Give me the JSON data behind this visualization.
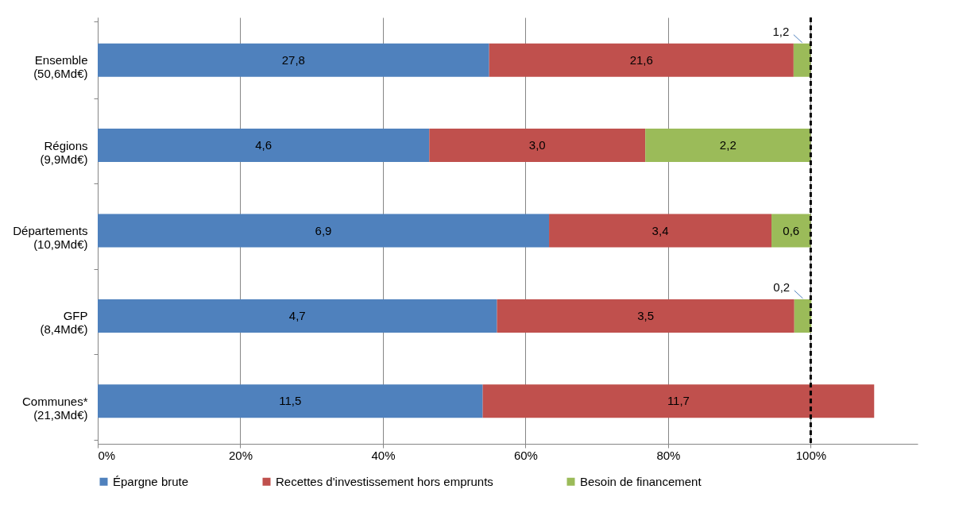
{
  "chart_data": {
    "type": "bar",
    "orientation": "horizontal",
    "stacked": true,
    "categories": [
      "Ensemble\n(50,6Md€)",
      "Régions\n(9,9Md€)",
      "Départements\n(10,9Md€)",
      "GFP\n(8,4Md€)",
      "Communes*\n(21,3Md€)"
    ],
    "series": [
      {
        "name": "Épargne brute",
        "color": "#4f81bd",
        "values": [
          54.9,
          46.5,
          63.3,
          56.0,
          54.0
        ]
      },
      {
        "name": "Recettes d'investissement hors emprunts",
        "color": "#c0504d",
        "values": [
          42.7,
          30.3,
          31.2,
          41.7,
          54.9
        ]
      },
      {
        "name": "Besoin de financement",
        "color": "#9bbb59",
        "values": [
          2.4,
          23.2,
          5.5,
          2.4,
          null
        ]
      }
    ],
    "annotations": [
      "27,8",
      "21,6",
      "1,2",
      "4,6",
      "3,0",
      "2,2",
      "6,9",
      "3,4",
      "0,6",
      "4,7",
      "3,5",
      "0,2",
      "11,5",
      "11,7"
    ],
    "xlim": [
      0,
      115
    ],
    "xticks": [
      {
        "value": 0,
        "label": "0%"
      },
      {
        "value": 20,
        "label": "20%"
      },
      {
        "value": 40,
        "label": "40%"
      },
      {
        "value": 60,
        "label": "60%"
      },
      {
        "value": 80,
        "label": "80%"
      },
      {
        "value": 100,
        "label": "100%"
      }
    ],
    "grid": "x",
    "legend": "bottom",
    "ref_lines": [
      {
        "axis": "x",
        "value": 100,
        "label": null,
        "color": "#000000",
        "line_style": "dashed"
      }
    ]
  }
}
